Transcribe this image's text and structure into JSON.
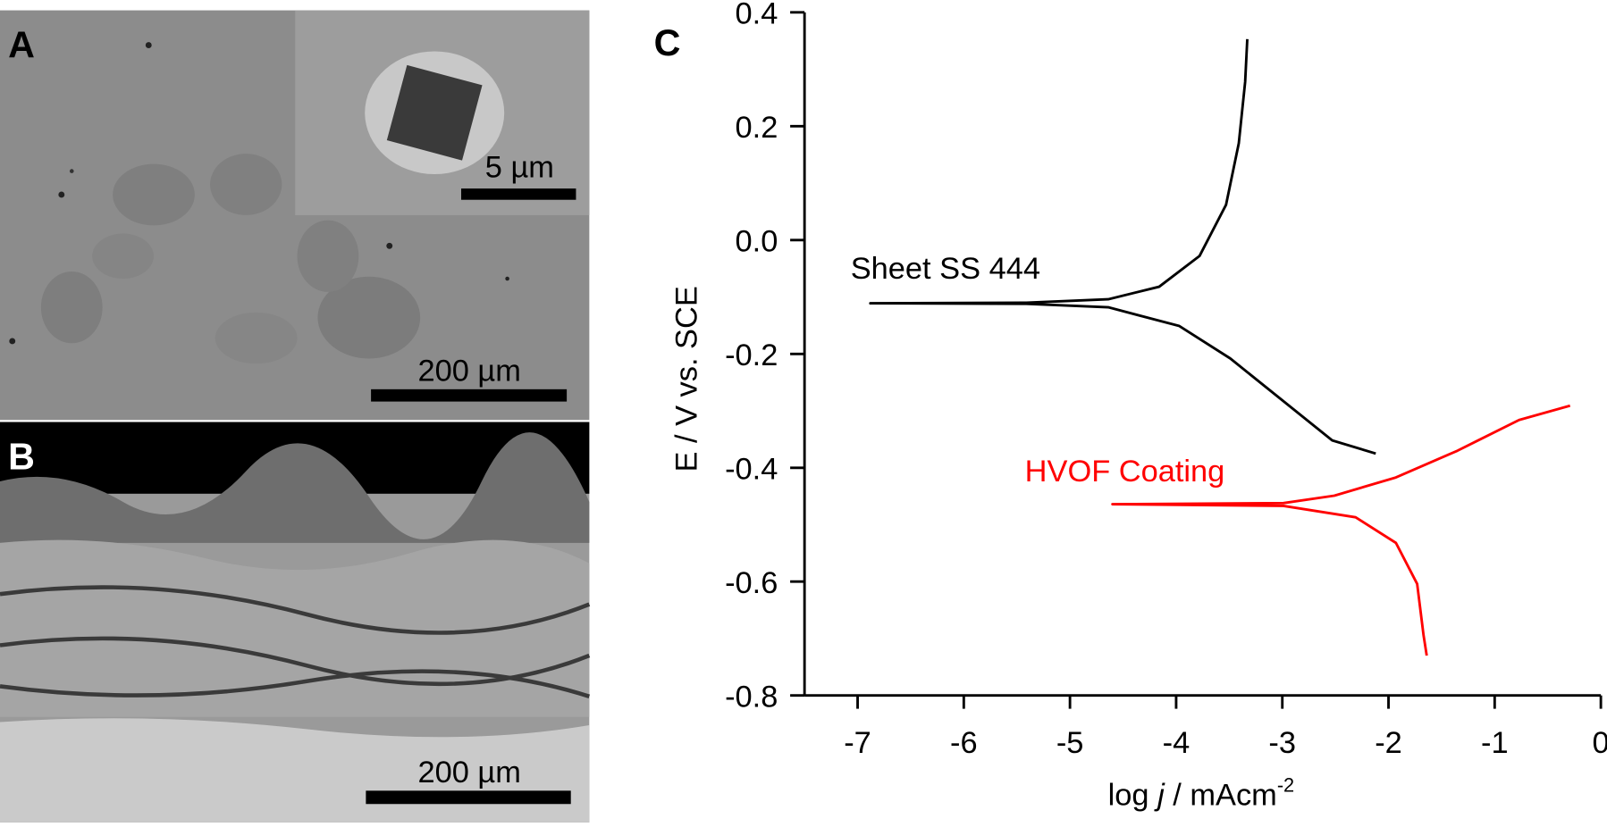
{
  "panels": [
    {
      "label": "A",
      "scale_bar": "200 µm",
      "inset_scale_bar": "5 µm"
    },
    {
      "label": "B",
      "scale_bar": "200 µm"
    }
  ],
  "chart_data": {
    "type": "line",
    "panel_label": "C",
    "ylabel": "E / V vs. SCE",
    "xlabel_parts": [
      "log ",
      "j",
      " / mAcm",
      "-2"
    ],
    "xlim": [
      -7.5,
      0
    ],
    "xticks": [
      -7,
      -6,
      -5,
      -4,
      -3,
      -2,
      -1,
      0
    ],
    "ylim": [
      -0.8,
      0.4
    ],
    "yticks": [
      -0.8,
      -0.6,
      -0.4,
      -0.2,
      {
        "value": 0,
        "label": "0.0"
      },
      0.2,
      0.4
    ],
    "series": [
      {
        "name": "Sheet SS 444",
        "color": "#000000",
        "x": [
          -3.33,
          -3.35,
          -3.41,
          -3.53,
          -3.78,
          -4.16,
          -4.64,
          -5.41,
          -6.88,
          -5.41,
          -4.64,
          -3.97,
          -3.49,
          -3.01,
          -2.53,
          -2.12
        ],
        "values": [
          0.353,
          0.278,
          0.17,
          0.062,
          -0.028,
          -0.082,
          -0.104,
          -0.11,
          -0.111,
          -0.112,
          -0.118,
          -0.151,
          -0.208,
          -0.28,
          -0.352,
          -0.375
        ]
      },
      {
        "name": "HVOF Coating",
        "color": "#ff0000",
        "x": [
          -0.29,
          -0.77,
          -1.35,
          -1.93,
          -2.51,
          -2.99,
          -4.6,
          -2.99,
          -2.31,
          -1.93,
          -1.73,
          -1.67,
          -1.64
        ],
        "values": [
          -0.291,
          -0.316,
          -0.37,
          -0.417,
          -0.449,
          -0.462,
          -0.464,
          -0.467,
          -0.487,
          -0.532,
          -0.604,
          -0.694,
          -0.73
        ]
      }
    ]
  }
}
